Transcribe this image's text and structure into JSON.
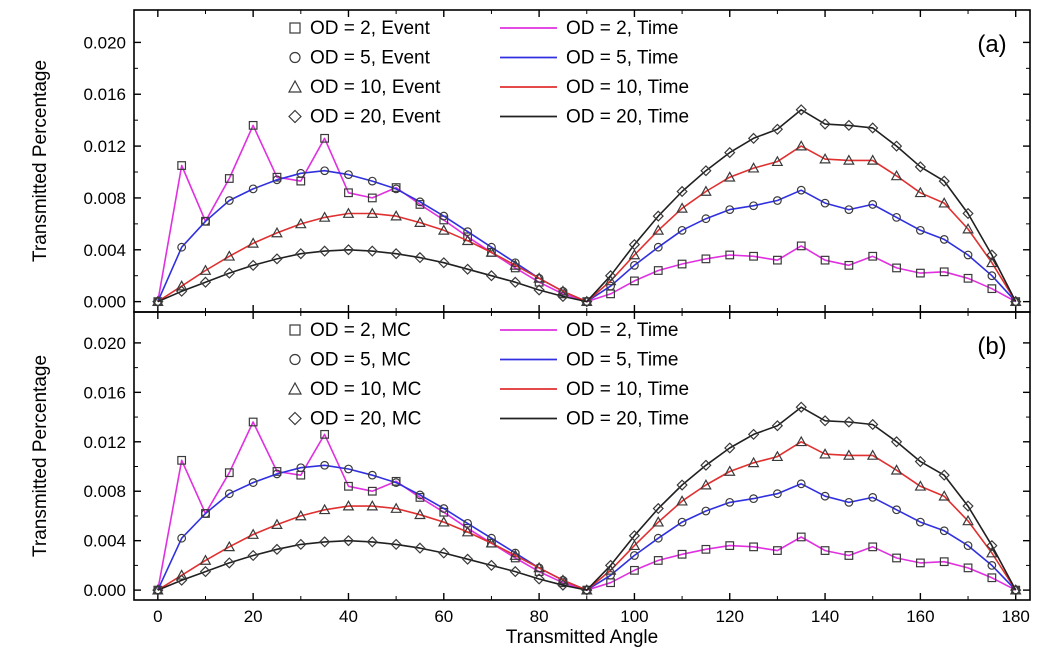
{
  "chart_data": [
    {
      "panel": "(a)",
      "type": "line+scatter",
      "xlabel": "",
      "ylabel": "Transmitted Percentage",
      "xlim": [
        -5,
        183
      ],
      "ylim": [
        -0.0008,
        0.0225
      ],
      "xticks": [
        0,
        20,
        40,
        60,
        80,
        100,
        120,
        140,
        160,
        180
      ],
      "yticks": [
        "0.000",
        "0.004",
        "0.008",
        "0.012",
        "0.016",
        "0.020"
      ],
      "legend_position": "top",
      "marker_label": "Event",
      "series": [
        {
          "od": 2,
          "marker": "square",
          "marker_label": "OD = 2, Event",
          "line_label": "OD = 2, Time",
          "line_color": "#e030e0",
          "x": [
            0,
            5,
            10,
            15,
            20,
            25,
            30,
            35,
            40,
            45,
            50,
            55,
            60,
            65,
            70,
            75,
            80,
            85,
            90,
            95,
            100,
            105,
            110,
            115,
            120,
            125,
            130,
            135,
            140,
            145,
            150,
            155,
            160,
            165,
            170,
            175,
            180
          ],
          "values": [
            0.0,
            0.0105,
            0.0062,
            0.0095,
            0.0136,
            0.0096,
            0.0093,
            0.0126,
            0.0084,
            0.008,
            0.0088,
            0.0075,
            0.0063,
            0.005,
            0.0038,
            0.0026,
            0.0015,
            0.0006,
            0.0,
            0.0006,
            0.0016,
            0.0024,
            0.0029,
            0.0033,
            0.0036,
            0.0035,
            0.0032,
            0.0043,
            0.0032,
            0.0028,
            0.0035,
            0.0026,
            0.0022,
            0.0023,
            0.0018,
            0.001,
            0.0
          ]
        },
        {
          "od": 5,
          "marker": "circle",
          "marker_label": "OD = 5, Event",
          "line_label": "OD = 5, Time",
          "line_color": "#3030e0",
          "x": [
            0,
            5,
            10,
            15,
            20,
            25,
            30,
            35,
            40,
            45,
            50,
            55,
            60,
            65,
            70,
            75,
            80,
            85,
            90,
            95,
            100,
            105,
            110,
            115,
            120,
            125,
            130,
            135,
            140,
            145,
            150,
            155,
            160,
            165,
            170,
            175,
            180
          ],
          "values": [
            0.0,
            0.0042,
            0.0062,
            0.0078,
            0.0087,
            0.0094,
            0.0099,
            0.0101,
            0.0098,
            0.0093,
            0.0087,
            0.0077,
            0.0066,
            0.0054,
            0.0042,
            0.003,
            0.0018,
            0.0008,
            0.0,
            0.0012,
            0.0028,
            0.0042,
            0.0055,
            0.0064,
            0.0071,
            0.0074,
            0.0078,
            0.0086,
            0.0076,
            0.0071,
            0.0075,
            0.0065,
            0.0055,
            0.0048,
            0.0036,
            0.002,
            0.0
          ]
        },
        {
          "od": 10,
          "marker": "triangle",
          "marker_label": "OD = 10, Event",
          "line_label": "OD = 10, Time",
          "line_color": "#e03030",
          "x": [
            0,
            5,
            10,
            15,
            20,
            25,
            30,
            35,
            40,
            45,
            50,
            55,
            60,
            65,
            70,
            75,
            80,
            85,
            90,
            95,
            100,
            105,
            110,
            115,
            120,
            125,
            130,
            135,
            140,
            145,
            150,
            155,
            160,
            165,
            170,
            175,
            180
          ],
          "values": [
            0.0,
            0.0012,
            0.0024,
            0.0035,
            0.0045,
            0.0053,
            0.006,
            0.0065,
            0.0068,
            0.0068,
            0.0066,
            0.0061,
            0.0055,
            0.0047,
            0.0038,
            0.0028,
            0.0018,
            0.0008,
            0.0,
            0.0016,
            0.0036,
            0.0055,
            0.0072,
            0.0085,
            0.0096,
            0.0103,
            0.0108,
            0.012,
            0.011,
            0.0109,
            0.0109,
            0.0097,
            0.0084,
            0.0076,
            0.0056,
            0.003,
            0.0
          ]
        },
        {
          "od": 20,
          "marker": "diamond",
          "marker_label": "OD = 20, Event",
          "line_label": "OD = 20, Time",
          "line_color": "#202020",
          "x": [
            0,
            5,
            10,
            15,
            20,
            25,
            30,
            35,
            40,
            45,
            50,
            55,
            60,
            65,
            70,
            75,
            80,
            85,
            90,
            95,
            100,
            105,
            110,
            115,
            120,
            125,
            130,
            135,
            140,
            145,
            150,
            155,
            160,
            165,
            170,
            175,
            180
          ],
          "values": [
            0.0,
            0.0008,
            0.0015,
            0.0022,
            0.0028,
            0.0033,
            0.0037,
            0.0039,
            0.004,
            0.0039,
            0.0037,
            0.0034,
            0.003,
            0.0025,
            0.002,
            0.0015,
            0.0009,
            0.0004,
            0.0,
            0.002,
            0.0044,
            0.0066,
            0.0085,
            0.0101,
            0.0115,
            0.0126,
            0.0133,
            0.0148,
            0.0137,
            0.0136,
            0.0134,
            0.012,
            0.0104,
            0.0093,
            0.0068,
            0.0036,
            0.0
          ]
        }
      ]
    },
    {
      "panel": "(b)",
      "type": "line+scatter",
      "xlabel": "Transmitted Angle",
      "ylabel": "Transmitted Percentage",
      "xlim": [
        -5,
        183
      ],
      "ylim": [
        -0.0008,
        0.0225
      ],
      "xticks": [
        0,
        20,
        40,
        60,
        80,
        100,
        120,
        140,
        160,
        180
      ],
      "yticks": [
        "0.000",
        "0.004",
        "0.008",
        "0.012",
        "0.016",
        "0.020"
      ],
      "legend_position": "top",
      "marker_label": "MC",
      "series": [
        {
          "od": 2,
          "marker": "square",
          "marker_label": "OD = 2, MC",
          "line_label": "OD = 2, Time",
          "line_color": "#e030e0",
          "x": [
            0,
            5,
            10,
            15,
            20,
            25,
            30,
            35,
            40,
            45,
            50,
            55,
            60,
            65,
            70,
            75,
            80,
            85,
            90,
            95,
            100,
            105,
            110,
            115,
            120,
            125,
            130,
            135,
            140,
            145,
            150,
            155,
            160,
            165,
            170,
            175,
            180
          ],
          "values": [
            0.0,
            0.0105,
            0.0062,
            0.0095,
            0.0136,
            0.0096,
            0.0093,
            0.0126,
            0.0084,
            0.008,
            0.0088,
            0.0075,
            0.0063,
            0.005,
            0.0038,
            0.0026,
            0.0015,
            0.0006,
            0.0,
            0.0006,
            0.0016,
            0.0024,
            0.0029,
            0.0033,
            0.0036,
            0.0035,
            0.0032,
            0.0043,
            0.0032,
            0.0028,
            0.0035,
            0.0026,
            0.0022,
            0.0023,
            0.0018,
            0.001,
            0.0
          ]
        },
        {
          "od": 5,
          "marker": "circle",
          "marker_label": "OD = 5, MC",
          "line_label": "OD = 5, Time",
          "line_color": "#3030e0",
          "x": [
            0,
            5,
            10,
            15,
            20,
            25,
            30,
            35,
            40,
            45,
            50,
            55,
            60,
            65,
            70,
            75,
            80,
            85,
            90,
            95,
            100,
            105,
            110,
            115,
            120,
            125,
            130,
            135,
            140,
            145,
            150,
            155,
            160,
            165,
            170,
            175,
            180
          ],
          "values": [
            0.0,
            0.0042,
            0.0062,
            0.0078,
            0.0087,
            0.0094,
            0.0099,
            0.0101,
            0.0098,
            0.0093,
            0.0087,
            0.0077,
            0.0066,
            0.0054,
            0.0042,
            0.003,
            0.0018,
            0.0008,
            0.0,
            0.0012,
            0.0028,
            0.0042,
            0.0055,
            0.0064,
            0.0071,
            0.0074,
            0.0078,
            0.0086,
            0.0076,
            0.0071,
            0.0075,
            0.0065,
            0.0055,
            0.0048,
            0.0036,
            0.002,
            0.0
          ]
        },
        {
          "od": 10,
          "marker": "triangle",
          "marker_label": "OD = 10, MC",
          "line_label": "OD = 10, Time",
          "line_color": "#e03030",
          "x": [
            0,
            5,
            10,
            15,
            20,
            25,
            30,
            35,
            40,
            45,
            50,
            55,
            60,
            65,
            70,
            75,
            80,
            85,
            90,
            95,
            100,
            105,
            110,
            115,
            120,
            125,
            130,
            135,
            140,
            145,
            150,
            155,
            160,
            165,
            170,
            175,
            180
          ],
          "values": [
            0.0,
            0.0012,
            0.0024,
            0.0035,
            0.0045,
            0.0053,
            0.006,
            0.0065,
            0.0068,
            0.0068,
            0.0066,
            0.0061,
            0.0055,
            0.0047,
            0.0038,
            0.0028,
            0.0018,
            0.0008,
            0.0,
            0.0016,
            0.0036,
            0.0055,
            0.0072,
            0.0085,
            0.0096,
            0.0103,
            0.0108,
            0.012,
            0.011,
            0.0109,
            0.0109,
            0.0097,
            0.0084,
            0.0076,
            0.0056,
            0.003,
            0.0
          ]
        },
        {
          "od": 20,
          "marker": "diamond",
          "marker_label": "OD = 20, MC",
          "line_label": "OD = 20, Time",
          "line_color": "#202020",
          "x": [
            0,
            5,
            10,
            15,
            20,
            25,
            30,
            35,
            40,
            45,
            50,
            55,
            60,
            65,
            70,
            75,
            80,
            85,
            90,
            95,
            100,
            105,
            110,
            115,
            120,
            125,
            130,
            135,
            140,
            145,
            150,
            155,
            160,
            165,
            170,
            175,
            180
          ],
          "values": [
            0.0,
            0.0008,
            0.0015,
            0.0022,
            0.0028,
            0.0033,
            0.0037,
            0.0039,
            0.004,
            0.0039,
            0.0037,
            0.0034,
            0.003,
            0.0025,
            0.002,
            0.0015,
            0.0009,
            0.0004,
            0.0,
            0.002,
            0.0044,
            0.0066,
            0.0085,
            0.0101,
            0.0115,
            0.0126,
            0.0133,
            0.0148,
            0.0137,
            0.0136,
            0.0134,
            0.012,
            0.0104,
            0.0093,
            0.0068,
            0.0036,
            0.0
          ]
        }
      ]
    }
  ]
}
